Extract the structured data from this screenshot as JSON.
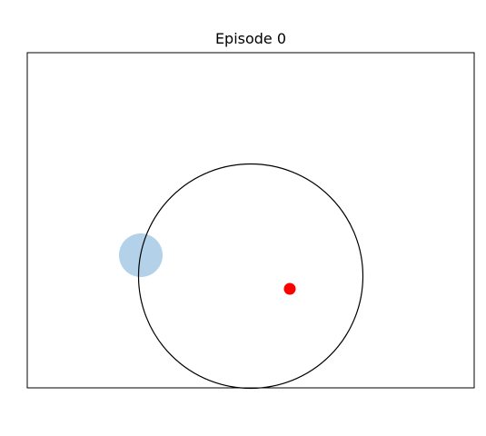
{
  "figure": {
    "title": "Episode 0"
  },
  "scene": {
    "arena": {
      "boundary_color": "#000000",
      "background_color": "#ffffff"
    },
    "entities": [
      {
        "name": "agent",
        "shape": "filled-circle",
        "color": "#ff0000"
      },
      {
        "name": "target",
        "shape": "filled-circle",
        "color": "#b3d1e8"
      },
      {
        "name": "range-ring",
        "shape": "outline-circle",
        "color": "#000000"
      }
    ]
  }
}
